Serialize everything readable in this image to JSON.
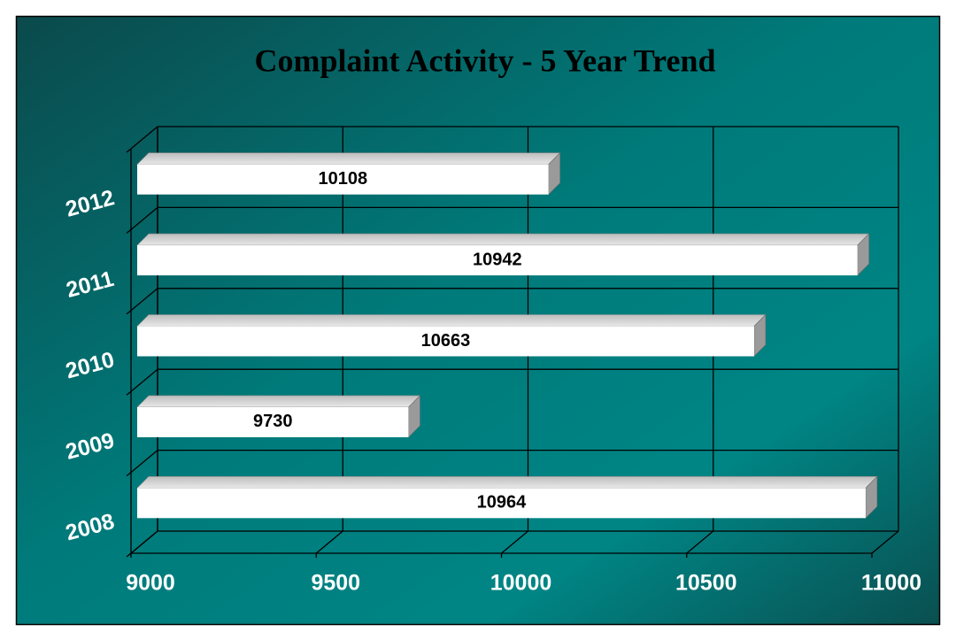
{
  "chart_data": {
    "type": "bar3d_horizontal",
    "title": "Complaint Activity - 5 Year Trend",
    "categories": [
      "2008",
      "2009",
      "2010",
      "2011",
      "2012"
    ],
    "values": [
      10964,
      9730,
      10663,
      10942,
      10108
    ],
    "color": "#ffffff",
    "xlim": [
      9000,
      11000
    ],
    "xticks": [
      9000,
      9500,
      10000,
      10500,
      11000
    ],
    "grid": true
  }
}
